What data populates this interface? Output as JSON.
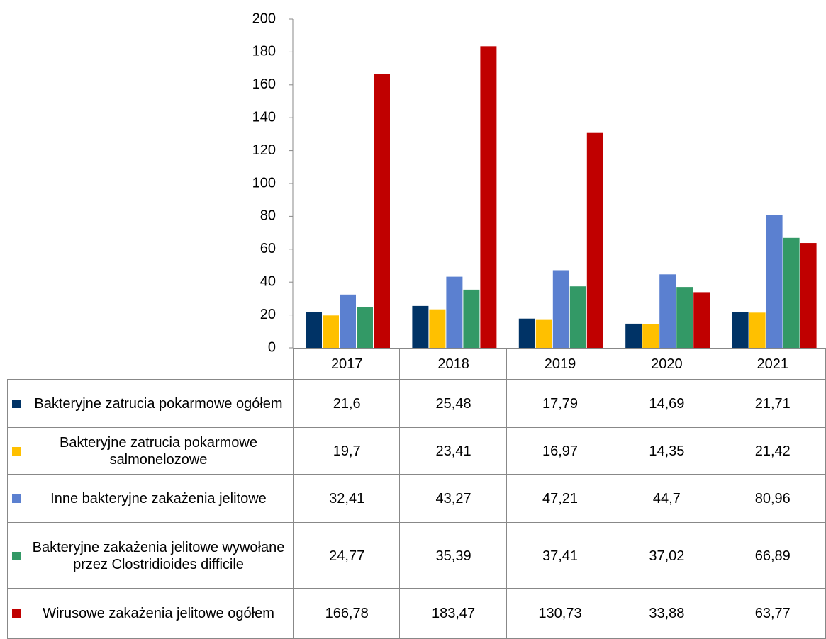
{
  "chart_data": {
    "type": "bar",
    "categories": [
      "2017",
      "2018",
      "2019",
      "2020",
      "2021"
    ],
    "ylim": [
      0,
      200
    ],
    "yticks": [
      0,
      20,
      40,
      60,
      80,
      100,
      120,
      140,
      160,
      180,
      200
    ],
    "series": [
      {
        "name": "Bakteryjne zatrucia pokarmowe ogółem",
        "color": "#003366",
        "values": [
          21.6,
          25.48,
          17.79,
          14.69,
          21.71
        ],
        "value_labels": [
          "21,6",
          "25,48",
          "17,79",
          "14,69",
          "21,71"
        ]
      },
      {
        "name": "Bakteryjne zatrucia pokarmowe salmonelozowe",
        "color": "#ffc000",
        "values": [
          19.7,
          23.41,
          16.97,
          14.35,
          21.42
        ],
        "value_labels": [
          "19,7",
          "23,41",
          "16,97",
          "14,35",
          "21,42"
        ]
      },
      {
        "name": "Inne bakteryjne zakażenia jelitowe",
        "color": "#5b80d0",
        "values": [
          32.41,
          43.27,
          47.21,
          44.7,
          80.96
        ],
        "value_labels": [
          "32,41",
          "43,27",
          "47,21",
          "44,7",
          "80,96"
        ]
      },
      {
        "name": "Bakteryjne zakażenia jelitowe wywołane przez Clostridioides difficile",
        "color": "#339966",
        "values": [
          24.77,
          35.39,
          37.41,
          37.02,
          66.89
        ],
        "value_labels": [
          "24,77",
          "35,39",
          "37,41",
          "37,02",
          "66,89"
        ]
      },
      {
        "name": "Wirusowe zakażenia jelitowe ogółem",
        "color": "#c00000",
        "values": [
          166.78,
          183.47,
          130.73,
          33.88,
          63.77
        ],
        "value_labels": [
          "166,78",
          "183,47",
          "130,73",
          "33,88",
          "63,77"
        ]
      }
    ]
  }
}
